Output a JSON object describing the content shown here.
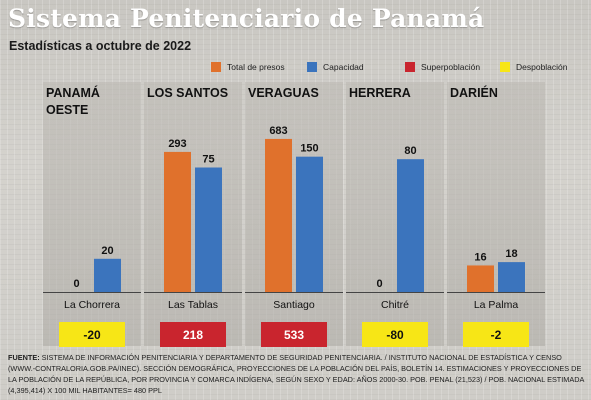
{
  "title": "Sistema Penitenciario de Panamá",
  "subtitle": "Estadísticas a octubre de 2022",
  "legend": [
    {
      "label": "Total de presos",
      "color": "#e0712c"
    },
    {
      "label": "Capacidad",
      "color": "#3b74bd"
    },
    {
      "label": "Superpoblación",
      "color": "#c9252e"
    },
    {
      "label": "Despoblación",
      "color": "#f7e616"
    }
  ],
  "colors": {
    "presos": "#e0712c",
    "capacidad": "#3b74bd",
    "superpoblacion": "#c9252e",
    "despoblacion": "#f7e616"
  },
  "chart_data": {
    "type": "bar",
    "title": "Sistema Penitenciario de Panamá",
    "subtitle": "Estadísticas a octubre de 2022",
    "series_names": [
      "Total de presos",
      "Capacidad"
    ],
    "regions": [
      {
        "region": "PANAMÁ\nOESTE",
        "city": "La Chorrera",
        "presos": 0,
        "capacidad": 20,
        "difference": -20,
        "difference_label": "-20",
        "status": "despoblacion"
      },
      {
        "region": "LOS SANTOS",
        "city": "Las Tablas",
        "presos": 293,
        "capacidad": 75,
        "difference": 218,
        "difference_label": "218",
        "status": "superpoblacion"
      },
      {
        "region": "VERAGUAS",
        "city": "Santiago",
        "presos": 683,
        "capacidad": 150,
        "difference": 533,
        "difference_label": "533",
        "status": "superpoblacion"
      },
      {
        "region": "HERRERA",
        "city": "Chitré",
        "presos": 0,
        "capacidad": 80,
        "difference": -80,
        "difference_label": "-80",
        "status": "despoblacion"
      },
      {
        "region": "DARIÉN",
        "city": "La Palma",
        "presos": 16,
        "capacidad": 18,
        "difference": -2,
        "difference_label": "-2",
        "status": "despoblacion"
      }
    ]
  },
  "footer": {
    "label": "FUENTE:",
    "text": "Sistema de Información Penitenciaria y Departamento de Seguridad Penitenciaria. / Instituto Nacional de Estadística y Censo (www.-contraloria.gob.pa/inec). Sección Demográfica, Proyecciones de la población del país, Boletín 14. Estimaciones y proyecciones de la población de la República, por provincia y comarca indígena, según sexo y edad: años 2000-30. Pob. penal (21,523) / Pob. nacional estimada (4,395,414) x 100 mil habitantes= 480 PPL"
  }
}
